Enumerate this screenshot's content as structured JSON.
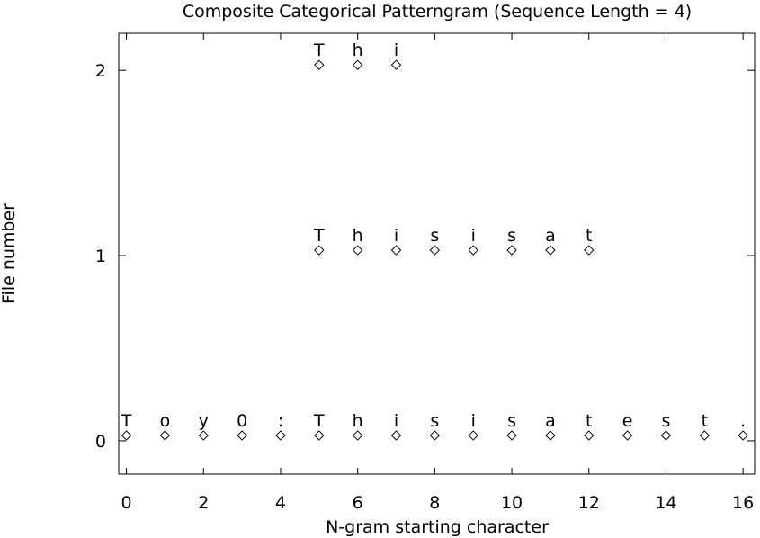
{
  "chart_data": {
    "type": "scatter",
    "title": "Composite Categorical Patterngram (Sequence Length = 4)",
    "xlabel": "N-gram starting character",
    "ylabel": "File number",
    "xlim": [
      -0.2,
      16.3
    ],
    "ylim": [
      -0.18,
      2.2
    ],
    "x_ticks": [
      "0",
      "2",
      "4",
      "6",
      "8",
      "10",
      "12",
      "14",
      "16"
    ],
    "y_ticks": [
      "0",
      "1",
      "2"
    ],
    "marker": "diamond",
    "grid": false,
    "legend": "none",
    "series": [
      {
        "file": 0,
        "points": [
          {
            "x": 0,
            "char": "T"
          },
          {
            "x": 1,
            "char": "o"
          },
          {
            "x": 2,
            "char": "y"
          },
          {
            "x": 3,
            "char": "0"
          },
          {
            "x": 4,
            "char": ":"
          },
          {
            "x": 5,
            "char": "T"
          },
          {
            "x": 6,
            "char": "h"
          },
          {
            "x": 7,
            "char": "i"
          },
          {
            "x": 8,
            "char": "s"
          },
          {
            "x": 9,
            "char": "i"
          },
          {
            "x": 10,
            "char": "s"
          },
          {
            "x": 11,
            "char": "a"
          },
          {
            "x": 12,
            "char": "t"
          },
          {
            "x": 13,
            "char": "e"
          },
          {
            "x": 14,
            "char": "s"
          },
          {
            "x": 15,
            "char": "t"
          },
          {
            "x": 16,
            "char": "."
          }
        ]
      },
      {
        "file": 1,
        "points": [
          {
            "x": 5,
            "char": "T"
          },
          {
            "x": 6,
            "char": "h"
          },
          {
            "x": 7,
            "char": "i"
          },
          {
            "x": 8,
            "char": "s"
          },
          {
            "x": 9,
            "char": "i"
          },
          {
            "x": 10,
            "char": "s"
          },
          {
            "x": 11,
            "char": "a"
          },
          {
            "x": 12,
            "char": "t"
          }
        ]
      },
      {
        "file": 2,
        "points": [
          {
            "x": 5,
            "char": "T"
          },
          {
            "x": 6,
            "char": "h"
          },
          {
            "x": 7,
            "char": "i"
          }
        ]
      }
    ]
  }
}
